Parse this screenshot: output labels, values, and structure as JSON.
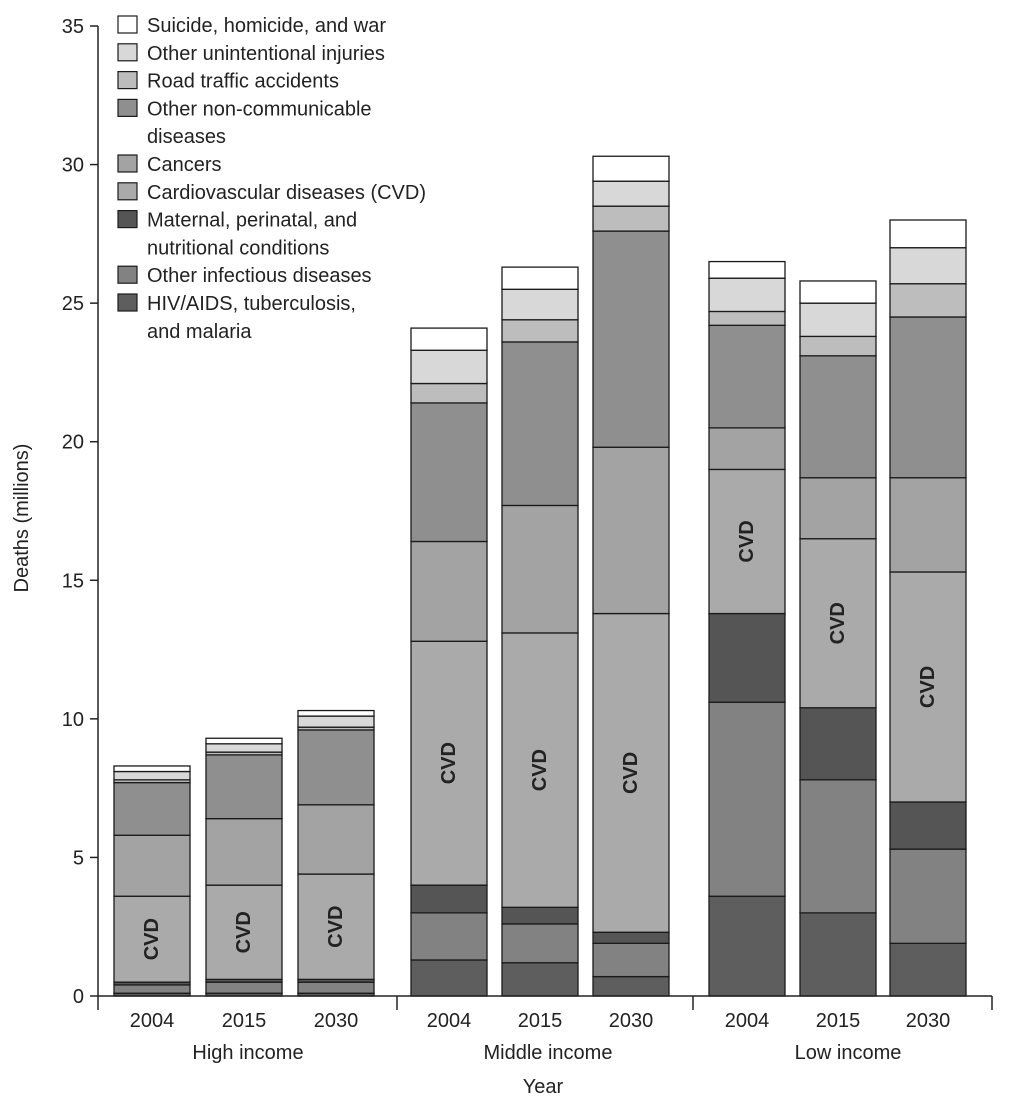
{
  "chart_data": {
    "type": "bar",
    "stacked": true,
    "ylabel": "Deaths (millions)",
    "xlabel": "Year",
    "ylim": [
      0,
      35
    ],
    "yticks": [
      0,
      5,
      10,
      15,
      20,
      25,
      30,
      35
    ],
    "grid": false,
    "legend_position": "top-left",
    "groups": [
      {
        "label": "High income",
        "years": [
          "2004",
          "2015",
          "2030"
        ]
      },
      {
        "label": "Middle income",
        "years": [
          "2004",
          "2015",
          "2030"
        ]
      },
      {
        "label": "Low income",
        "years": [
          "2004",
          "2015",
          "2030"
        ]
      }
    ],
    "categories": [
      "2004",
      "2015",
      "2030",
      "2004",
      "2015",
      "2030",
      "2004",
      "2015",
      "2030"
    ],
    "series": [
      {
        "name": "HIV/AIDS, tuberculosis, and malaria",
        "color": "#5e5e5e",
        "values": [
          0.1,
          0.1,
          0.1,
          1.3,
          1.2,
          0.7,
          3.6,
          3.0,
          1.9
        ]
      },
      {
        "name": "Other infectious diseases",
        "color": "#828282",
        "values": [
          0.3,
          0.4,
          0.4,
          1.7,
          1.4,
          1.2,
          7.0,
          4.8,
          3.4
        ]
      },
      {
        "name": "Maternal, perinatal, and nutritional conditions",
        "color": "#555555",
        "values": [
          0.1,
          0.1,
          0.1,
          1.0,
          0.6,
          0.4,
          3.2,
          2.6,
          1.7
        ]
      },
      {
        "name": "Cardiovascular diseases (CVD)",
        "color": "#aaaaaa",
        "values": [
          3.1,
          3.4,
          3.8,
          8.8,
          9.9,
          11.5,
          5.2,
          6.1,
          8.3
        ]
      },
      {
        "name": "Cancers",
        "color": "#a3a3a3",
        "values": [
          2.2,
          2.4,
          2.5,
          3.6,
          4.6,
          6.0,
          1.5,
          2.2,
          3.4
        ]
      },
      {
        "name": "Other non-communicable diseases",
        "color": "#8f8f8f",
        "values": [
          1.9,
          2.3,
          2.7,
          5.0,
          5.9,
          7.8,
          3.7,
          4.4,
          5.8
        ]
      },
      {
        "name": "Road traffic accidents",
        "color": "#bdbdbd",
        "values": [
          0.1,
          0.1,
          0.1,
          0.7,
          0.8,
          0.9,
          0.5,
          0.7,
          1.2
        ]
      },
      {
        "name": "Other unintentional injuries",
        "color": "#d8d8d8",
        "values": [
          0.3,
          0.3,
          0.4,
          1.2,
          1.1,
          0.9,
          1.2,
          1.2,
          1.3
        ]
      },
      {
        "name": "Suicide, homicide, and war",
        "color": "#ffffff",
        "values": [
          0.2,
          0.2,
          0.2,
          0.8,
          0.8,
          0.9,
          0.6,
          0.8,
          1.0
        ]
      }
    ],
    "legend": [
      {
        "label": "Suicide, homicide, and war",
        "color": "#ffffff"
      },
      {
        "label": "Other unintentional injuries",
        "color": "#d8d8d8"
      },
      {
        "label": "Road traffic accidents",
        "color": "#bdbdbd"
      },
      {
        "label": "Other non-communicable",
        "label2": "diseases",
        "color": "#8f8f8f"
      },
      {
        "label": "Cancers",
        "color": "#a3a3a3"
      },
      {
        "label": "Cardiovascular diseases (CVD)",
        "color": "#aaaaaa"
      },
      {
        "label": "Maternal, perinatal, and",
        "label2": "nutritional conditions",
        "color": "#555555"
      },
      {
        "label": "Other infectious diseases",
        "color": "#828282"
      },
      {
        "label": "HIV/AIDS, tuberculosis,",
        "label2": "and malaria",
        "color": "#5e5e5e"
      }
    ],
    "annotations": [
      "CVD",
      "CVD",
      "CVD",
      "CVD",
      "CVD",
      "CVD",
      "CVD",
      "CVD",
      "CVD"
    ]
  }
}
